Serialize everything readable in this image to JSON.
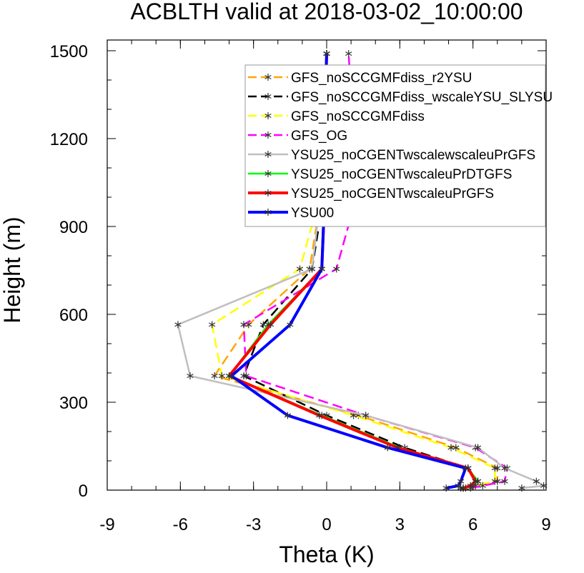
{
  "chart_data": {
    "type": "line",
    "title": "ACBLTH valid at 2018-03-02_10:00:00",
    "xlabel": "Theta (K)",
    "ylabel": "Height (m)",
    "xlim": [
      -9,
      9
    ],
    "ylim": [
      0,
      1500
    ],
    "xticks": [
      "-9",
      "-6",
      "-3",
      "0",
      "3",
      "6",
      "9"
    ],
    "yticks": [
      "0",
      "300",
      "600",
      "900",
      "1200",
      "1500"
    ],
    "grid": false,
    "legend_position": "top-right",
    "heights": [
      7,
      15,
      30,
      75,
      145,
      255,
      390,
      565,
      755,
      965,
      1210,
      1490
    ],
    "series": [
      {
        "name": "GFS_noSCCGMFdiss_r2YSU",
        "color": "#ffa500",
        "dash": "dash",
        "width": 2.5,
        "values": [
          5.6,
          6.1,
          7.0,
          7.0,
          5.3,
          1.3,
          -4.6,
          -3.2,
          -0.7,
          -0.3,
          -0.1,
          0.0
        ]
      },
      {
        "name": "GFS_noSCCGMFdiss_wscaleYSU_SLYSU",
        "color": "#000000",
        "dash": "dash",
        "width": 2.5,
        "values": [
          5.5,
          6.0,
          6.2,
          5.8,
          3.2,
          0.0,
          -3.4,
          -2.6,
          -0.6,
          -0.2,
          -0.1,
          0.0
        ]
      },
      {
        "name": "GFS_noSCCGMFdiss",
        "color": "#ffff00",
        "dash": "dash",
        "width": 2.5,
        "values": [
          5.7,
          6.1,
          6.9,
          6.9,
          5.1,
          1.1,
          -4.3,
          -4.7,
          -1.1,
          -0.4,
          -0.1,
          0.0
        ]
      },
      {
        "name": "GFS_OG",
        "color": "#ff00ff",
        "dash": "dash",
        "width": 2.5,
        "values": [
          5.9,
          6.4,
          7.3,
          7.4,
          6.1,
          1.6,
          -3.3,
          -3.4,
          0.4,
          1.1,
          1.1,
          0.9
        ]
      },
      {
        "name": "YSU25_noCGENTwscalewscaleuPrGFS",
        "color": "#bfbfbf",
        "dash": "solid",
        "width": 2.5,
        "values": [
          8.0,
          8.9,
          8.6,
          7.3,
          6.2,
          1.6,
          -5.6,
          -6.1,
          -0.6,
          -0.3,
          -0.1,
          0.0
        ]
      },
      {
        "name": "YSU25_noCGENTwscaleuPrDTGFS",
        "color": "#00ff00",
        "dash": "solid",
        "width": 2.5,
        "values": [
          5.6,
          6.0,
          6.2,
          5.8,
          3.0,
          -0.2,
          -4.0,
          -2.4,
          -0.2,
          -0.1,
          -0.1,
          0.0
        ]
      },
      {
        "name": "YSU25_noCGENTwscaleuPrGFS",
        "color": "#ff0000",
        "dash": "solid",
        "width": 4,
        "values": [
          5.6,
          5.9,
          6.1,
          5.8,
          2.9,
          -0.3,
          -4.0,
          -2.3,
          -0.2,
          -0.1,
          -0.1,
          0.0
        ]
      },
      {
        "name": "YSU00",
        "color": "#0000ff",
        "dash": "solid",
        "width": 4,
        "values": [
          4.9,
          5.4,
          5.5,
          5.7,
          2.5,
          -1.6,
          -3.9,
          -1.5,
          -0.2,
          -0.1,
          -0.1,
          0.0
        ]
      }
    ]
  }
}
